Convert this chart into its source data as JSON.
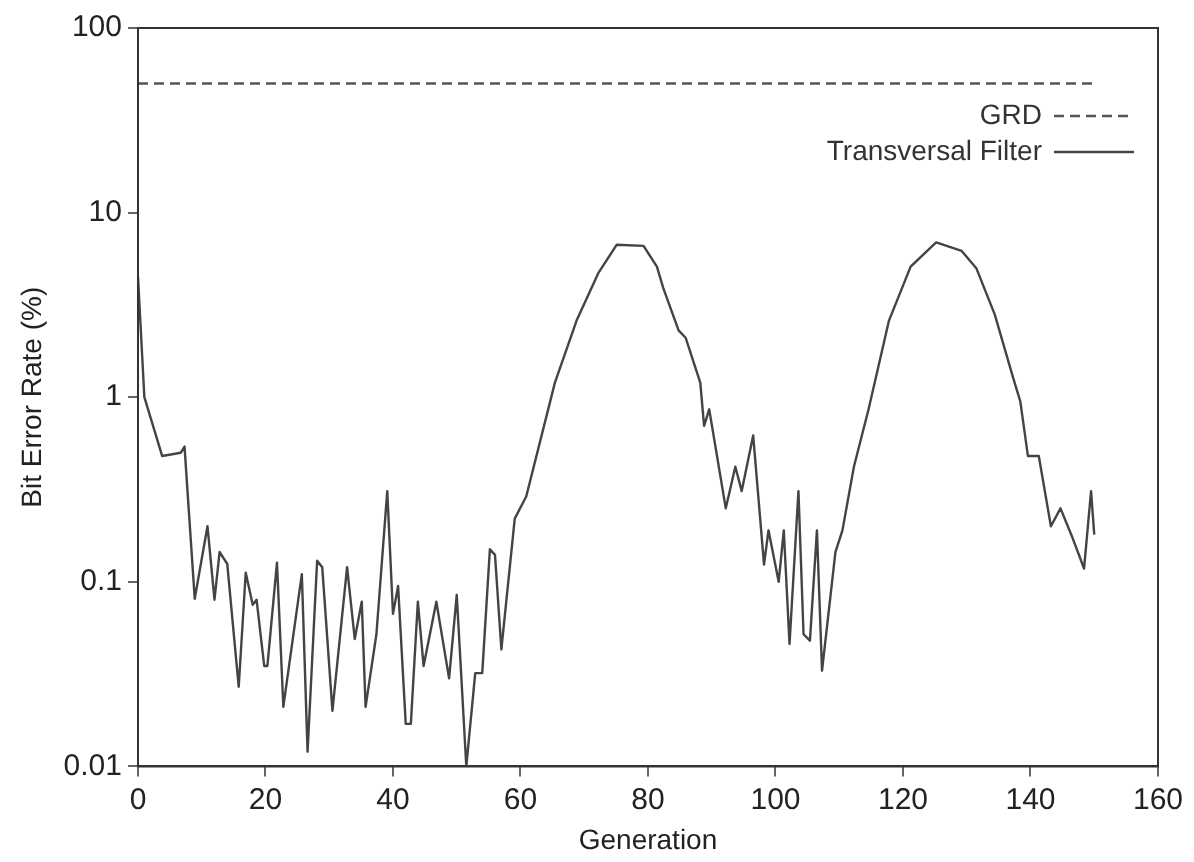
{
  "chart_data": {
    "type": "line",
    "xlabel": "Generation",
    "ylabel": "Bit Error Rate (%)",
    "log": "y",
    "xlim": [
      0,
      160
    ],
    "xticks": [
      0,
      20,
      40,
      60,
      80,
      100,
      120,
      140,
      160
    ],
    "ylim": [
      0.01,
      100
    ],
    "yticks": [
      0.01,
      0.1,
      1,
      10,
      100
    ],
    "grid": false,
    "legend": "top right",
    "marker": "none",
    "series": [
      {
        "name": "GRD",
        "color": "#555555",
        "line_style": "dashed",
        "x": [
          0,
          150
        ],
        "values": [
          50,
          50
        ]
      },
      {
        "name": "Transversal Filter",
        "color": "#444444",
        "line_style": "solid",
        "x": [
          0,
          1,
          3.8,
          6.7,
          7.3,
          8.9,
          10.9,
          12,
          12.8,
          14,
          15.8,
          16.9,
          18,
          18.6,
          19.8,
          20.3,
          21.8,
          22.8,
          25.7,
          26.6,
          28.1,
          28.9,
          30.5,
          32.8,
          34,
          35.1,
          35.7,
          37.4,
          39.1,
          40,
          40.8,
          42,
          42.8,
          43.9,
          44.8,
          46.8,
          48.8,
          50,
          51.5,
          52.9,
          54,
          55.2,
          56,
          57,
          59.1,
          60.9,
          65.4,
          68.8,
          72.2,
          75.1,
          79.3,
          81.4,
          82.4,
          84.8,
          85.9,
          88.2,
          88.8,
          89.6,
          92.2,
          93.7,
          94.7,
          96.5,
          98.2,
          98.9,
          100.5,
          101.3,
          102.2,
          103.6,
          104.4,
          105.4,
          106.5,
          107.3,
          109.4,
          110.5,
          112.3,
          114.6,
          117.8,
          121.2,
          125.2,
          129.2,
          131.5,
          134.4,
          137.2,
          138.4,
          139.6,
          141.3,
          143.2,
          144.7,
          146.4,
          148.4,
          149.5,
          150
        ],
        "values": [
          4.5,
          1.0,
          0.48,
          0.5,
          0.54,
          0.081,
          0.2,
          0.08,
          0.145,
          0.125,
          0.027,
          0.112,
          0.075,
          0.08,
          0.035,
          0.035,
          0.127,
          0.021,
          0.11,
          0.012,
          0.13,
          0.12,
          0.02,
          0.12,
          0.049,
          0.078,
          0.021,
          0.052,
          0.31,
          0.067,
          0.095,
          0.017,
          0.017,
          0.078,
          0.035,
          0.078,
          0.03,
          0.085,
          0.01,
          0.032,
          0.032,
          0.15,
          0.14,
          0.043,
          0.22,
          0.29,
          1.2,
          2.6,
          4.7,
          6.7,
          6.6,
          5.1,
          3.9,
          2.3,
          2.1,
          1.2,
          0.7,
          0.86,
          0.25,
          0.42,
          0.31,
          0.62,
          0.124,
          0.19,
          0.1,
          0.19,
          0.046,
          0.31,
          0.052,
          0.048,
          0.19,
          0.033,
          0.145,
          0.19,
          0.42,
          0.86,
          2.6,
          5.1,
          6.9,
          6.2,
          5.0,
          2.8,
          1.3,
          0.95,
          0.48,
          0.48,
          0.2,
          0.25,
          0.18,
          0.118,
          0.31,
          0.18
        ]
      }
    ]
  }
}
